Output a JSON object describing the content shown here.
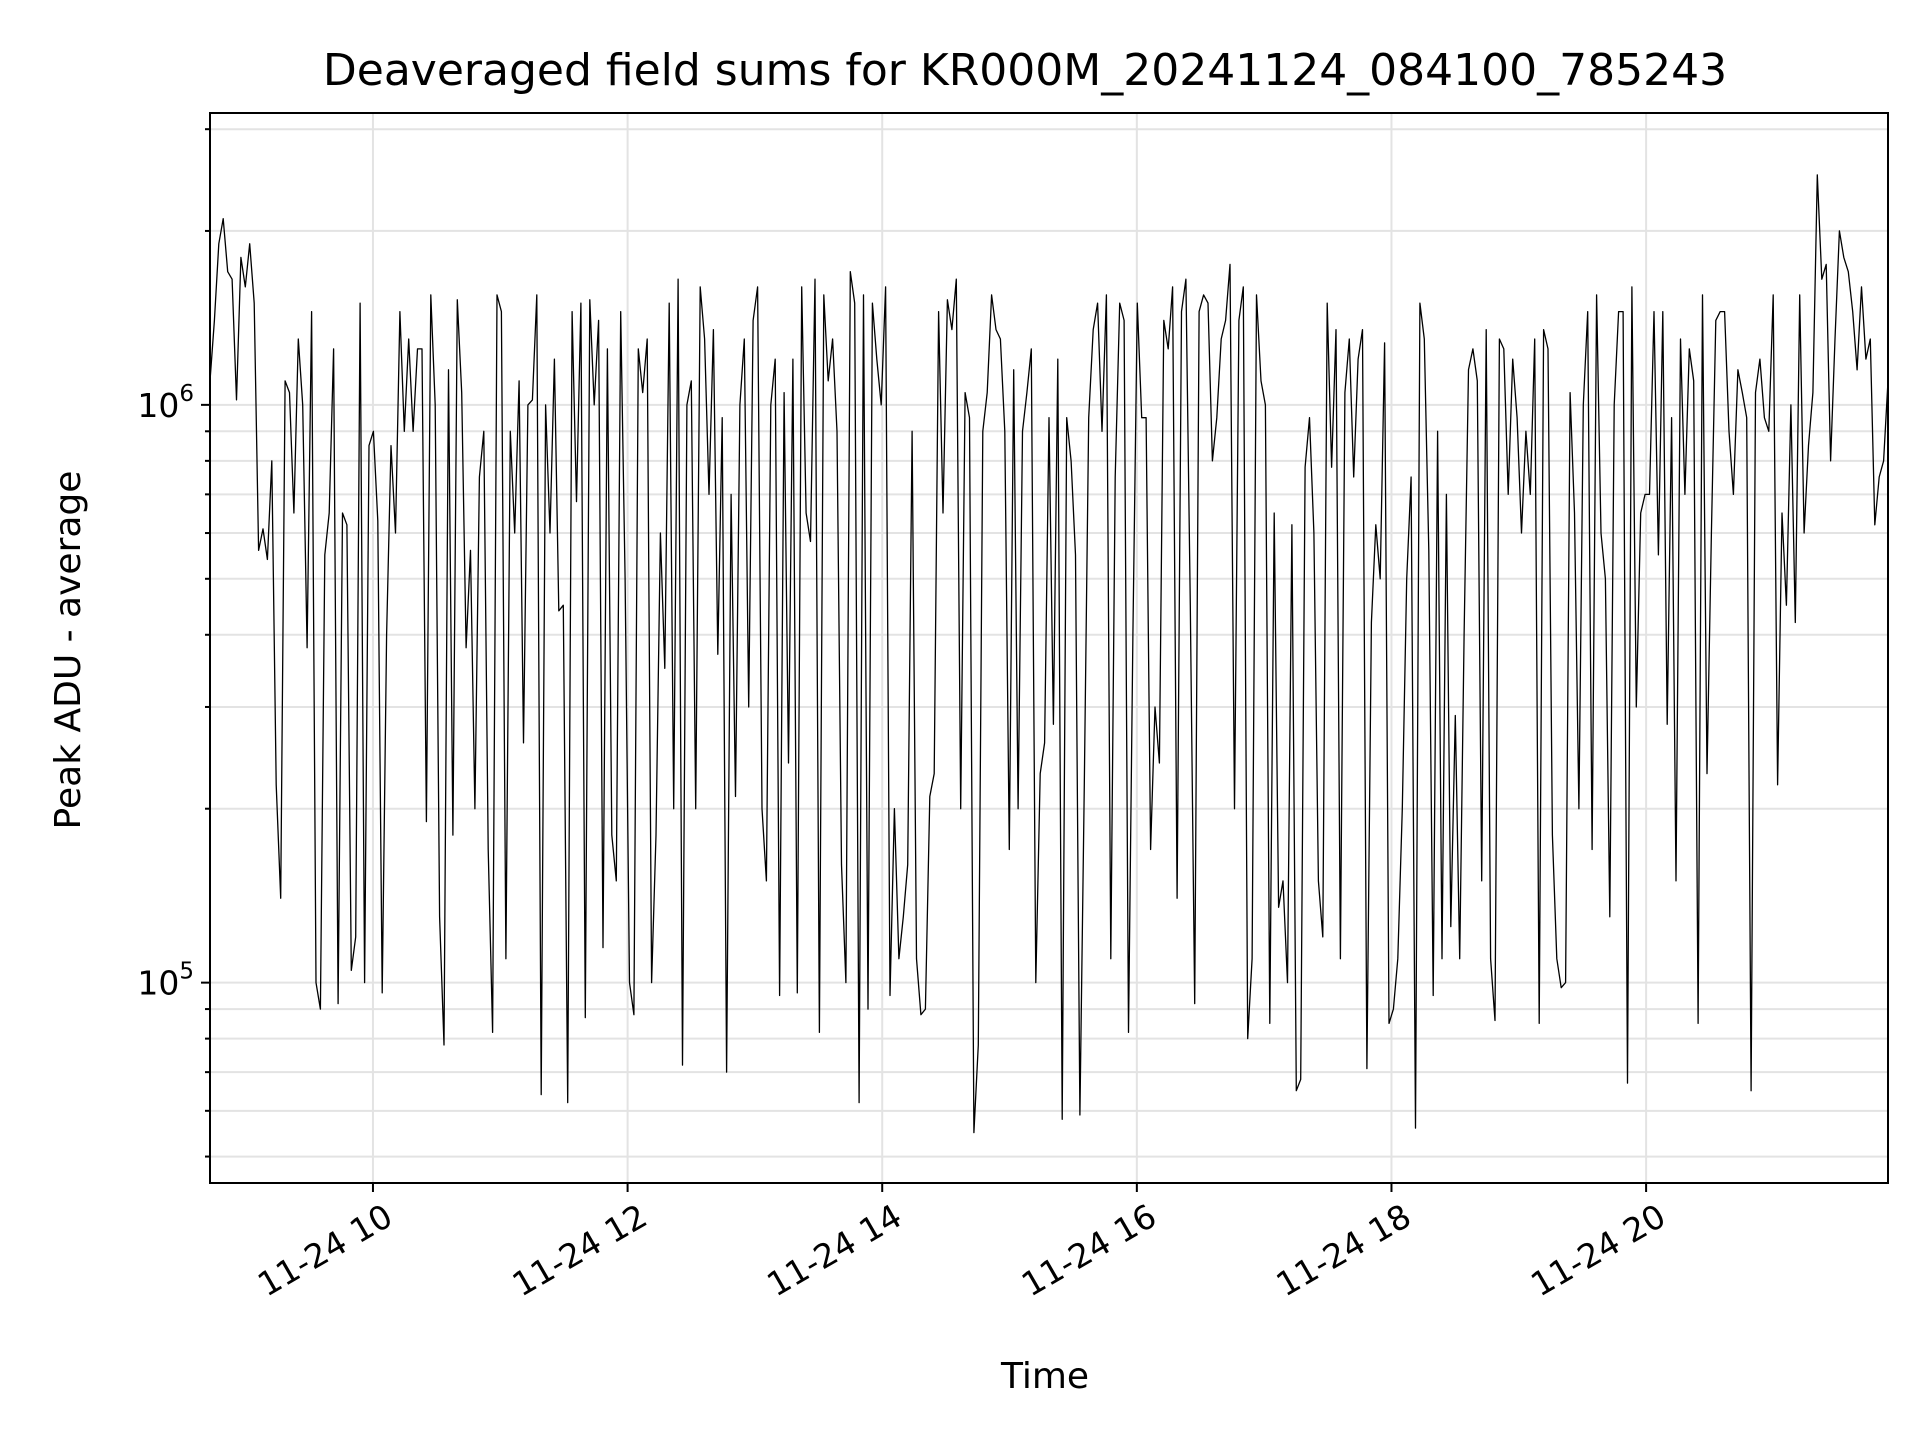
{
  "chart_data": {
    "type": "line",
    "title": "Deaveraged field sums for KR000M_20241124_084100_785243",
    "xlabel": "Time",
    "ylabel": "Peak ADU - average",
    "yscale": "log",
    "ylim": [
      45000,
      3200000
    ],
    "xlim_hours": [
      8.72,
      21.9
    ],
    "x_tick_hours": [
      10,
      12,
      14,
      16,
      18,
      20
    ],
    "x_tick_labels": [
      "11-24 10",
      "11-24 12",
      "11-24 14",
      "11-24 16",
      "11-24 18",
      "11-24 20"
    ],
    "y_tick_labels": [
      {
        "base": "10",
        "exp": "6",
        "value": 1000000
      },
      {
        "base": "10",
        "exp": "5",
        "value": 100000
      }
    ],
    "grid": true,
    "line_color": "#000000",
    "series": [
      {
        "name": "deaveraged field sum",
        "x_start_hour": 8.72,
        "x_end_hour": 21.9,
        "values": [
          1100000,
          1400000,
          1900000,
          2100000,
          1700000,
          1650000,
          1020000,
          1800000,
          1600000,
          1900000,
          1500000,
          560000,
          610000,
          540000,
          800000,
          220000,
          140000,
          1100000,
          1050000,
          650000,
          1300000,
          1000000,
          380000,
          1450000,
          100000,
          90000,
          550000,
          650000,
          1250000,
          92000,
          650000,
          620000,
          105000,
          120000,
          1500000,
          100000,
          850000,
          900000,
          630000,
          96000,
          400000,
          850000,
          600000,
          1450000,
          900000,
          1300000,
          900000,
          1250000,
          1250000,
          190000,
          1550000,
          1000000,
          130000,
          78000,
          1150000,
          180000,
          1520000,
          1050000,
          380000,
          560000,
          200000,
          750000,
          900000,
          170000,
          82000,
          1550000,
          1450000,
          110000,
          900000,
          600000,
          1100000,
          260000,
          1000000,
          1020000,
          1550000,
          64000,
          1000000,
          600000,
          1200000,
          440000,
          450000,
          62000,
          1450000,
          680000,
          1500000,
          87000,
          1520000,
          1000000,
          1400000,
          115000,
          1250000,
          180000,
          150000,
          1450000,
          500000,
          100000,
          88000,
          1250000,
          1050000,
          1300000,
          100000,
          180000,
          600000,
          350000,
          1500000,
          200000,
          1650000,
          72000,
          1000000,
          1100000,
          200000,
          1600000,
          1300000,
          700000,
          1350000,
          370000,
          950000,
          70000,
          700000,
          210000,
          1000000,
          1300000,
          300000,
          1400000,
          1600000,
          200000,
          150000,
          1000000,
          1200000,
          95000,
          1050000,
          240000,
          1200000,
          96000,
          1600000,
          650000,
          580000,
          1650000,
          82000,
          1550000,
          1100000,
          1300000,
          900000,
          160000,
          100000,
          1700000,
          1500000,
          62000,
          1550000,
          90000,
          1500000,
          1200000,
          1000000,
          1600000,
          95000,
          200000,
          110000,
          130000,
          160000,
          900000,
          110000,
          88000,
          90000,
          210000,
          230000,
          1450000,
          650000,
          1520000,
          1350000,
          1650000,
          200000,
          1050000,
          950000,
          55000,
          78000,
          900000,
          1050000,
          1550000,
          1350000,
          1300000,
          900000,
          170000,
          1150000,
          200000,
          900000,
          1050000,
          1250000,
          100000,
          230000,
          260000,
          950000,
          280000,
          1200000,
          58000,
          950000,
          800000,
          550000,
          59000,
          220000,
          950000,
          1350000,
          1500000,
          900000,
          1550000,
          110000,
          750000,
          1500000,
          1400000,
          82000,
          400000,
          1500000,
          950000,
          950000,
          170000,
          300000,
          240000,
          1400000,
          1250000,
          1600000,
          140000,
          1450000,
          1650000,
          450000,
          92000,
          1450000,
          1550000,
          1500000,
          800000,
          950000,
          1300000,
          1400000,
          1750000,
          200000,
          1400000,
          1600000,
          80000,
          110000,
          1550000,
          1100000,
          1000000,
          85000,
          650000,
          135000,
          150000,
          100000,
          620000,
          65000,
          68000,
          780000,
          950000,
          600000,
          150000,
          120000,
          1500000,
          780000,
          1350000,
          110000,
          1050000,
          1300000,
          750000,
          1200000,
          1350000,
          71000,
          420000,
          620000,
          500000,
          1280000,
          85000,
          90000,
          110000,
          200000,
          500000,
          750000,
          56000,
          1500000,
          1300000,
          560000,
          95000,
          900000,
          110000,
          700000,
          125000,
          290000,
          110000,
          400000,
          1150000,
          1250000,
          1100000,
          150000,
          1350000,
          110000,
          86000,
          1300000,
          1250000,
          700000,
          1200000,
          950000,
          600000,
          900000,
          700000,
          1300000,
          85000,
          1350000,
          1250000,
          180000,
          110000,
          98000,
          100000,
          1050000,
          650000,
          200000,
          1000000,
          1450000,
          170000,
          1550000,
          600000,
          500000,
          130000,
          1000000,
          1450000,
          1450000,
          67000,
          1600000,
          300000,
          650000,
          700000,
          700000,
          1450000,
          550000,
          1450000,
          280000,
          950000,
          150000,
          1300000,
          700000,
          1250000,
          1100000,
          85000,
          1550000,
          230000,
          600000,
          1400000,
          1450000,
          1450000,
          900000,
          700000,
          1150000,
          1050000,
          950000,
          65000,
          1050000,
          1200000,
          950000,
          900000,
          1550000,
          220000,
          650000,
          450000,
          1000000,
          420000,
          1550000,
          600000,
          850000,
          1050000,
          2500000,
          1650000,
          1750000,
          800000,
          1300000,
          2000000,
          1800000,
          1700000,
          1450000,
          1150000,
          1600000,
          1200000,
          1300000,
          620000,
          750000,
          800000,
          1100000
        ]
      }
    ]
  }
}
